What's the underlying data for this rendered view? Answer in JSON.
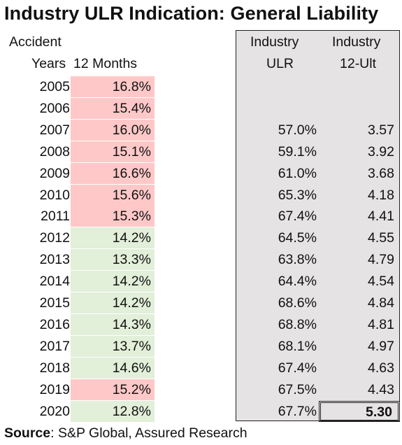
{
  "title": "Industry ULR Indication: General Liability",
  "headers": {
    "col1_line1": "Accident",
    "col1_line2": "Years",
    "col2_line2": "12 Months",
    "col3_line1": "Industry",
    "col3_line2": "ULR",
    "col4_line1": "Industry",
    "col4_line2": "12-Ult"
  },
  "colors": {
    "red_fill": "#ffc8c8",
    "green_fill": "#e2efd9",
    "panel_fill": "#e5e3e4"
  },
  "chart_data": {
    "type": "table",
    "columns": [
      "Accident Years",
      "12 Months",
      "Industry ULR",
      "Industry 12-Ult"
    ],
    "rows": [
      {
        "year": "2005",
        "months12": "16.8%",
        "ulr": "",
        "ult": "",
        "shade": "red"
      },
      {
        "year": "2006",
        "months12": "15.4%",
        "ulr": "",
        "ult": "",
        "shade": "red"
      },
      {
        "year": "2007",
        "months12": "16.0%",
        "ulr": "57.0%",
        "ult": "3.57",
        "shade": "red"
      },
      {
        "year": "2008",
        "months12": "15.1%",
        "ulr": "59.1%",
        "ult": "3.92",
        "shade": "red"
      },
      {
        "year": "2009",
        "months12": "16.6%",
        "ulr": "61.0%",
        "ult": "3.68",
        "shade": "red"
      },
      {
        "year": "2010",
        "months12": "15.6%",
        "ulr": "65.3%",
        "ult": "4.18",
        "shade": "red"
      },
      {
        "year": "2011",
        "months12": "15.3%",
        "ulr": "67.4%",
        "ult": "4.41",
        "shade": "red"
      },
      {
        "year": "2012",
        "months12": "14.2%",
        "ulr": "64.5%",
        "ult": "4.55",
        "shade": "green"
      },
      {
        "year": "2013",
        "months12": "13.3%",
        "ulr": "63.8%",
        "ult": "4.79",
        "shade": "green"
      },
      {
        "year": "2014",
        "months12": "14.2%",
        "ulr": "64.4%",
        "ult": "4.54",
        "shade": "green"
      },
      {
        "year": "2015",
        "months12": "14.2%",
        "ulr": "68.6%",
        "ult": "4.84",
        "shade": "green"
      },
      {
        "year": "2016",
        "months12": "14.3%",
        "ulr": "68.8%",
        "ult": "4.81",
        "shade": "green"
      },
      {
        "year": "2017",
        "months12": "13.7%",
        "ulr": "68.1%",
        "ult": "4.97",
        "shade": "green"
      },
      {
        "year": "2018",
        "months12": "14.6%",
        "ulr": "67.4%",
        "ult": "4.63",
        "shade": "green"
      },
      {
        "year": "2019",
        "months12": "15.2%",
        "ulr": "67.5%",
        "ult": "4.43",
        "shade": "red"
      },
      {
        "year": "2020",
        "months12": "12.8%",
        "ulr": "67.7%",
        "ult": "5.30",
        "shade": "green",
        "highlight": true
      }
    ]
  },
  "source": {
    "label": "Source",
    "text": ": S&P Global, Assured Research"
  }
}
